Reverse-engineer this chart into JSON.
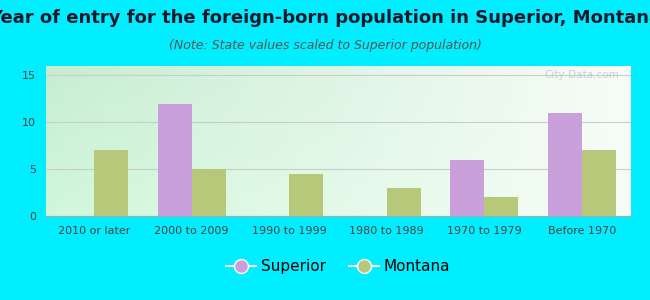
{
  "title": "Year of entry for the foreign-born population in Superior, Montana",
  "subtitle": "(Note: State values scaled to Superior population)",
  "categories": [
    "2010 or later",
    "2000 to 2009",
    "1990 to 1999",
    "1980 to 1989",
    "1970 to 1979",
    "Before 1970"
  ],
  "superior_values": [
    0,
    12,
    0,
    0,
    6,
    11
  ],
  "montana_values": [
    7,
    5,
    4.5,
    3,
    2,
    7
  ],
  "superior_color": "#c9a0dc",
  "montana_color": "#b8c87a",
  "background_color": "#00eeff",
  "ylim": [
    0,
    16
  ],
  "yticks": [
    0,
    5,
    10,
    15
  ],
  "bar_width": 0.35,
  "title_fontsize": 13,
  "subtitle_fontsize": 9,
  "tick_fontsize": 8,
  "legend_fontsize": 11
}
